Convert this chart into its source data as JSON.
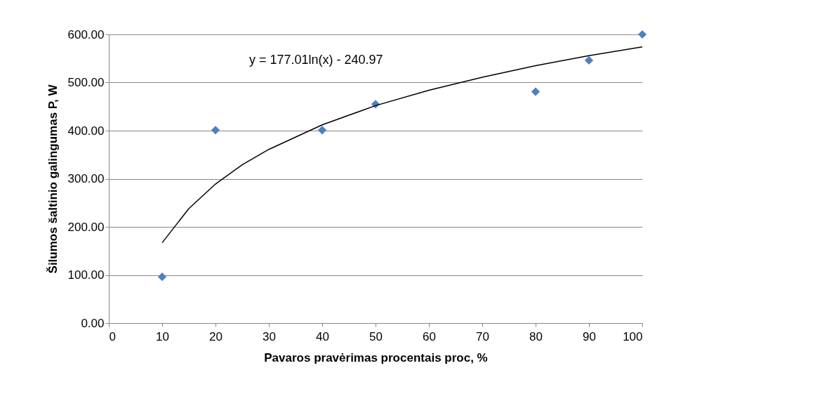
{
  "chart_data": {
    "type": "scatter",
    "xlabel": "Pavaros pravėrimas procentais proc, %",
    "ylabel": "Šilumos šaltinio galingumas P, W",
    "x": [
      10,
      20,
      40,
      50,
      80,
      90,
      100
    ],
    "series": [
      {
        "color": "#4f81bd",
        "marker": "diamond",
        "values": [
          96,
          401,
          401,
          455,
          481,
          546,
          600
        ]
      },
      {
        "type": "line",
        "color": "#000000",
        "marker": "none",
        "line_style": "solid",
        "x": [
          10,
          15,
          20,
          25,
          30,
          40,
          50,
          60,
          70,
          80,
          90,
          100
        ],
        "values": [
          167,
          238,
          289,
          329,
          361,
          412,
          452,
          484,
          511,
          535,
          556,
          574
        ]
      }
    ],
    "xlim": [
      0,
      100
    ],
    "xticks": [
      0,
      10,
      20,
      30,
      40,
      50,
      60,
      70,
      80,
      90,
      100
    ],
    "ylim": [
      0,
      600
    ],
    "yticks": [
      {
        "value": 0,
        "label": "0.00"
      },
      {
        "value": 100,
        "label": "100.00"
      },
      {
        "value": 200,
        "label": "200.00"
      },
      {
        "value": 300,
        "label": "300.00"
      },
      {
        "value": 400,
        "label": "400.00"
      },
      {
        "value": 500,
        "label": "500.00"
      },
      {
        "value": 600,
        "label": "600.00"
      }
    ],
    "grid": "y",
    "legend": false,
    "annotations": [
      "y = 177.01ln(x) - 240.97"
    ]
  }
}
